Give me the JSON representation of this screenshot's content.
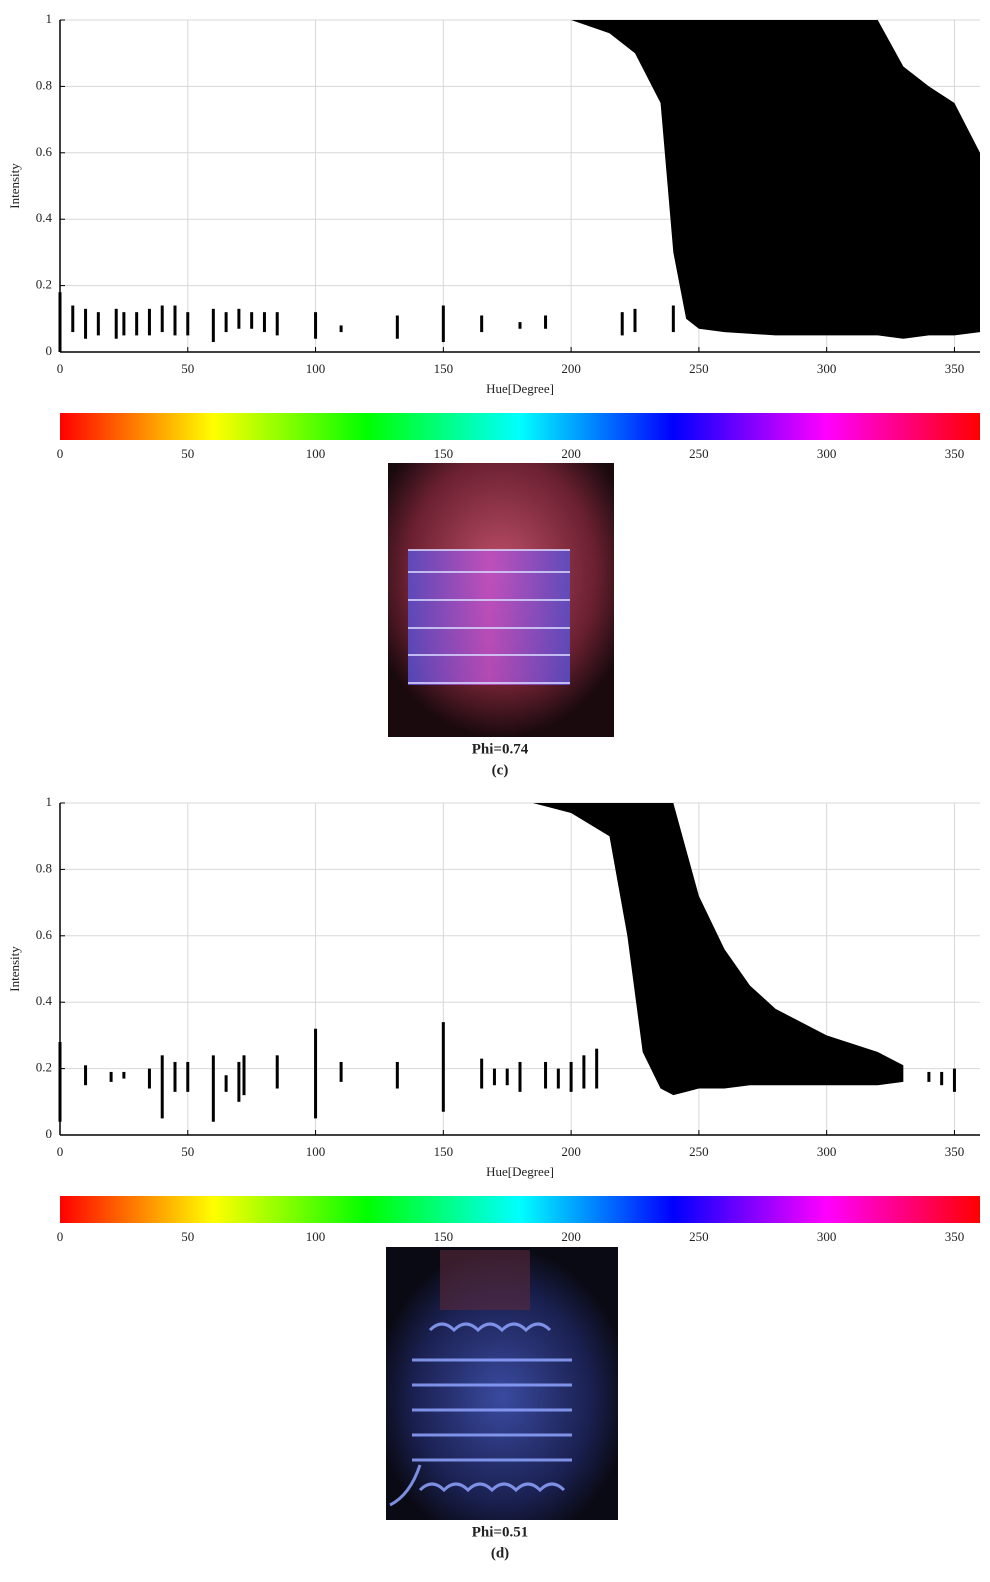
{
  "chart_data": [
    {
      "type": "area",
      "xlabel": "Hue[Degree]",
      "ylabel": "Intensity",
      "xlim": [
        0,
        360
      ],
      "ylim": [
        0,
        1
      ],
      "xticks": [
        0,
        50,
        100,
        150,
        200,
        250,
        300,
        350
      ],
      "yticks": [
        0,
        0.2,
        0.4,
        0.6,
        0.8,
        1
      ],
      "grid": true,
      "color": "#000000",
      "cloud": {
        "x": [
          200,
          215,
          225,
          235,
          240,
          245,
          250,
          260,
          280,
          300,
          320,
          330,
          340,
          350,
          360
        ],
        "upper": [
          1,
          1,
          1,
          1,
          1,
          1,
          1,
          1,
          1,
          1,
          1,
          0.86,
          0.8,
          0.75,
          0.6
        ],
        "lower": [
          1,
          0.96,
          0.9,
          0.75,
          0.3,
          0.1,
          0.07,
          0.06,
          0.05,
          0.05,
          0.05,
          0.04,
          0.05,
          0.05,
          0.06
        ]
      },
      "stripes": {
        "x": [
          0,
          5,
          10,
          15,
          22,
          25,
          30,
          35,
          40,
          45,
          50,
          60,
          65,
          70,
          75,
          80,
          85,
          100,
          110,
          132,
          150,
          165,
          180,
          190,
          220,
          225,
          240
        ],
        "top": [
          0.18,
          0.14,
          0.13,
          0.12,
          0.13,
          0.12,
          0.12,
          0.13,
          0.14,
          0.14,
          0.12,
          0.13,
          0.12,
          0.13,
          0.12,
          0.12,
          0.12,
          0.12,
          0.08,
          0.11,
          0.14,
          0.11,
          0.09,
          0.11,
          0.12,
          0.13,
          0.14
        ],
        "bottom": [
          0.0,
          0.06,
          0.04,
          0.05,
          0.04,
          0.05,
          0.05,
          0.05,
          0.06,
          0.05,
          0.05,
          0.03,
          0.06,
          0.07,
          0.07,
          0.06,
          0.05,
          0.04,
          0.06,
          0.04,
          0.03,
          0.06,
          0.07,
          0.07,
          0.05,
          0.06,
          0.06
        ]
      },
      "colorbar": {
        "lim": [
          0,
          360
        ],
        "ticks": [
          0,
          50,
          100,
          150,
          200,
          250,
          300,
          350
        ]
      },
      "caption": "Phi=0.74",
      "label": "(c)"
    },
    {
      "type": "area",
      "xlabel": "Hue[Degree]",
      "ylabel": "Intensity",
      "xlim": [
        0,
        360
      ],
      "ylim": [
        0,
        1
      ],
      "xticks": [
        0,
        50,
        100,
        150,
        200,
        250,
        300,
        350
      ],
      "yticks": [
        0,
        0.2,
        0.4,
        0.6,
        0.8,
        1
      ],
      "grid": true,
      "color": "#000000",
      "cloud": {
        "x": [
          185,
          200,
          215,
          222,
          228,
          235,
          240,
          245,
          250,
          260,
          270,
          280,
          300,
          320,
          330
        ],
        "upper": [
          1,
          1,
          1,
          1,
          1,
          1,
          1,
          0.86,
          0.72,
          0.56,
          0.45,
          0.38,
          0.3,
          0.25,
          0.21
        ],
        "lower": [
          1,
          0.97,
          0.9,
          0.6,
          0.25,
          0.14,
          0.12,
          0.13,
          0.14,
          0.14,
          0.15,
          0.15,
          0.15,
          0.15,
          0.16
        ]
      },
      "stripes": {
        "x": [
          0,
          10,
          20,
          25,
          35,
          40,
          45,
          50,
          60,
          65,
          70,
          72,
          85,
          100,
          110,
          132,
          150,
          165,
          170,
          175,
          180,
          190,
          195,
          200,
          205,
          210,
          340,
          345,
          350
        ],
        "top": [
          0.28,
          0.21,
          0.19,
          0.19,
          0.2,
          0.24,
          0.22,
          0.22,
          0.24,
          0.18,
          0.22,
          0.24,
          0.24,
          0.32,
          0.22,
          0.22,
          0.34,
          0.23,
          0.2,
          0.2,
          0.22,
          0.22,
          0.2,
          0.22,
          0.24,
          0.26,
          0.19,
          0.19,
          0.2
        ],
        "bottom": [
          0.04,
          0.15,
          0.16,
          0.17,
          0.14,
          0.05,
          0.13,
          0.13,
          0.04,
          0.13,
          0.1,
          0.12,
          0.14,
          0.05,
          0.16,
          0.14,
          0.07,
          0.14,
          0.15,
          0.15,
          0.13,
          0.14,
          0.14,
          0.13,
          0.14,
          0.14,
          0.16,
          0.15,
          0.13
        ]
      },
      "colorbar": {
        "lim": [
          0,
          360
        ],
        "ticks": [
          0,
          50,
          100,
          150,
          200,
          250,
          300,
          350
        ]
      },
      "caption": "Phi=0.51",
      "label": "(d)"
    }
  ]
}
